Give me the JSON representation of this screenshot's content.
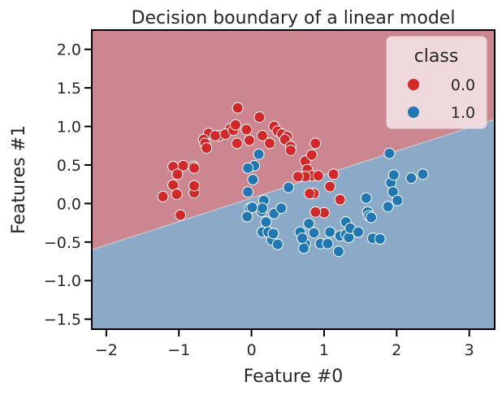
{
  "chart_data": {
    "type": "scatter",
    "title": "Decision boundary of a linear model",
    "xlabel": "Feature #0",
    "ylabel": "Features #1",
    "xlim": [
      -2.2,
      3.35
    ],
    "ylim": [
      -1.63,
      2.25
    ],
    "xticks": [
      -2,
      -1,
      0,
      1,
      2,
      3
    ],
    "xtick_labels": [
      "−2",
      "−1",
      "0",
      "1",
      "2",
      "3"
    ],
    "yticks": [
      -1.5,
      -1.0,
      -0.5,
      0.0,
      0.5,
      1.0,
      1.5,
      2.0
    ],
    "ytick_labels": [
      "−1.5",
      "−1.0",
      "−0.5",
      "0.0",
      "0.5",
      "1.0",
      "1.5",
      "2.0"
    ],
    "grid": false,
    "decision_boundary": {
      "x": [
        -2.2,
        3.35
      ],
      "y": [
        -0.6,
        1.09
      ]
    },
    "region_colors": {
      "class_0": "#cc8690",
      "class_1": "#8aaac8"
    },
    "legend": {
      "title": "class",
      "placement": "top-right",
      "entries": [
        "0.0",
        "1.0"
      ]
    },
    "series": [
      {
        "name": "0.0",
        "color": "#d62728",
        "x": [
          -0.19,
          -0.07,
          0.11,
          0.31,
          -0.29,
          -0.44,
          -0.59,
          -0.66,
          -0.64,
          -0.62,
          -0.5,
          -0.36,
          -0.25,
          -0.22,
          -0.2,
          -0.03,
          0.15,
          0.25,
          0.36,
          0.42,
          0.49,
          0.46,
          0.54,
          0.54,
          0.74,
          0.77,
          0.83,
          0.88,
          0.83,
          0.74,
          0.64,
          0.86,
          1.13,
          0.92,
          1.08,
          1.0,
          0.8,
          0.88,
          1.22,
          -1.08,
          -0.94,
          -0.8,
          -1.02,
          -0.79,
          -0.79,
          -1.22,
          -1.08,
          -1.03,
          -0.98,
          -0.79
        ],
        "y": [
          1.24,
          0.96,
          1.12,
          1.0,
          0.97,
          0.88,
          0.91,
          0.83,
          0.78,
          0.72,
          0.88,
          0.9,
          0.95,
          1.02,
          0.78,
          0.82,
          0.88,
          0.78,
          0.94,
          0.9,
          0.87,
          0.83,
          0.74,
          0.69,
          0.55,
          0.44,
          0.63,
          0.78,
          0.36,
          0.35,
          0.35,
          0.13,
          0.38,
          0.36,
          0.22,
          -0.12,
          0.13,
          -0.11,
          0.05,
          0.48,
          0.49,
          0.48,
          0.38,
          0.46,
          0.14,
          0.09,
          0.24,
          0.12,
          -0.15,
          0.23
        ]
      },
      {
        "name": "1.0",
        "color": "#1f77b4",
        "x": [
          0.1,
          0.04,
          -0.05,
          0.02,
          -0.05,
          0.17,
          0.14,
          0.2,
          0.15,
          0.15,
          0.28,
          0.36,
          0.23,
          0.3,
          0.31,
          0.41,
          0.51,
          0.67,
          0.74,
          0.72,
          0.7,
          0.79,
          0.86,
          0.95,
          1.05,
          1.08,
          1.2,
          1.22,
          1.3,
          1.3,
          1.34,
          1.36,
          1.47,
          1.58,
          1.6,
          1.62,
          1.65,
          1.67,
          1.77,
          1.88,
          1.92,
          1.96,
          1.95,
          2.01,
          2.2,
          2.36,
          1.9,
          -0.02,
          0.01,
          -0.06
        ],
        "y": [
          0.64,
          0.49,
          0.46,
          0.31,
          0.15,
          0.04,
          -0.1,
          -0.24,
          -0.37,
          -0.06,
          -0.47,
          -0.53,
          -0.37,
          -0.39,
          -0.13,
          -0.06,
          0.21,
          -0.37,
          -0.52,
          -0.58,
          -0.45,
          -0.26,
          -0.38,
          -0.52,
          -0.52,
          -0.37,
          -0.62,
          -0.42,
          -0.24,
          -0.4,
          -0.44,
          -0.32,
          -0.37,
          0.07,
          -0.11,
          -0.16,
          -0.18,
          -0.45,
          -0.46,
          -0.04,
          0.27,
          0.37,
          0.15,
          0.04,
          0.33,
          0.38,
          0.65,
          -0.06,
          -0.05,
          -0.17
        ]
      }
    ]
  }
}
